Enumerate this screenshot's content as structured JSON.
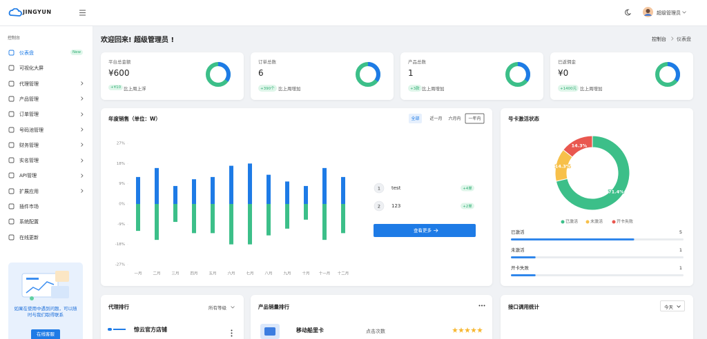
{
  "header": {
    "brand": "JINGYUN",
    "user": "超级管理员"
  },
  "sidebar": {
    "section": "控制台",
    "items": [
      {
        "label": "仪表盘",
        "badge": "New"
      },
      {
        "label": "可视化大屏"
      },
      {
        "label": "代理管理"
      },
      {
        "label": "产品管理"
      },
      {
        "label": "订单管理"
      },
      {
        "label": "号码池管理"
      },
      {
        "label": "财务管理"
      },
      {
        "label": "实名管理"
      },
      {
        "label": "API管理"
      },
      {
        "label": "扩展应用"
      },
      {
        "label": "插件市场"
      },
      {
        "label": "系统配置"
      },
      {
        "label": "在线更新"
      }
    ],
    "help": {
      "text": "如果在使用中遇到问题，可以随时与我们取得联系",
      "button": "在线客服"
    }
  },
  "page": {
    "welcome": "欢迎回来! 超级管理员 !",
    "breadcrumb": [
      "控制台",
      "仪表盘"
    ]
  },
  "stats": [
    {
      "label": "平台总金额",
      "value": "¥600",
      "change": "+¥10",
      "note": "比上周上浮"
    },
    {
      "label": "订单总数",
      "value": "6",
      "change": "+390个",
      "note": "比上周增加"
    },
    {
      "label": "产品总数",
      "value": "1",
      "change": "+3款",
      "note": "比上周增加"
    },
    {
      "label": "已返佣金",
      "value": "¥0",
      "change": "+1400元",
      "note": "比上周增加"
    }
  ],
  "chart_data": [
    {
      "type": "bar",
      "title": "年度销售（单位：W）",
      "tabs": [
        "全部",
        "近一月",
        "六月内",
        "一年内"
      ],
      "categories": [
        "一月",
        "二月",
        "三月",
        "四月",
        "五月",
        "六月",
        "七月",
        "八月",
        "九月",
        "十月",
        "十一月",
        "十二月"
      ],
      "series": [
        {
          "color": "#1e7be6",
          "values": [
            12,
            16,
            8,
            11,
            12,
            17,
            18,
            13,
            10,
            8,
            16,
            12
          ]
        },
        {
          "color": "#3cbf89",
          "values": [
            -12,
            -16,
            -8,
            -13,
            -13,
            -18,
            -18,
            -14,
            -11,
            -7,
            -16,
            -13
          ]
        }
      ],
      "ylim": [
        -27,
        27
      ],
      "yticks": [
        {
          "value": 27,
          "label": "27%"
        },
        {
          "value": 18,
          "label": "18%"
        },
        {
          "value": 9,
          "label": "9%"
        },
        {
          "value": 0,
          "label": "0%"
        },
        {
          "value": -9,
          "label": "-9%"
        },
        {
          "value": -18,
          "label": "-18%"
        },
        {
          "value": -27,
          "label": "-27%"
        }
      ],
      "ranking": [
        {
          "rank": 1,
          "name": "test",
          "count": "+4单"
        },
        {
          "rank": 2,
          "name": "123",
          "count": "+2单"
        }
      ],
      "more": "查看更多"
    },
    {
      "type": "pie",
      "title": "号卡激活状态",
      "categories": [
        "已激活",
        "未激活",
        "开卡失败"
      ],
      "values": [
        71.4,
        14.3,
        14.3
      ],
      "value_labels": [
        "71.4%",
        "14.3%",
        "14.3%"
      ],
      "colors": [
        "#3cbf89",
        "#f7c04a",
        "#e9574f"
      ],
      "counts": [
        5,
        1,
        1
      ]
    }
  ],
  "bottom": {
    "agents": {
      "title": "代理排行",
      "filter": "所有等级",
      "first": "惊云官方店铺"
    },
    "products": {
      "title": "产品销量排行",
      "first": "移动船里卡",
      "metric": "点击次数"
    },
    "api": {
      "title": "接口调用统计",
      "filter": "今天"
    }
  }
}
